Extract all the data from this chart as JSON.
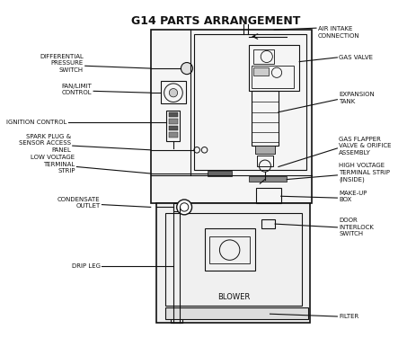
{
  "title": "G14 PARTS ARRANGEMENT",
  "labels": {
    "air_intake": "AIR INTAKE\nCONNECTION",
    "gas_valve": "GAS VALVE",
    "expansion_tank": "EXPANSION\nTANK",
    "gas_flapper": "GAS FLAPPER\nVALVE & ORIFICE\nASSEMBLY",
    "high_voltage": "HIGH VOLTAGE\nTERMINAL STRIP\n(INSIDE)",
    "makeup_box": "MAKE-UP\nBOX",
    "door_interlock": "DOOR\nINTERLOCK\nSWITCH",
    "filter": "FILTER",
    "blower": "BLOWER",
    "drip_leg": "DRIP LEG",
    "condensate": "CONDENSATE\nOUTLET",
    "low_voltage": "LOW VOLTAGE\nTERMINAL\nSTRIP",
    "spark_plug": "SPARK PLUG &\nSENSOR ACCESS\nPANEL",
    "ignition": "IGNITION CONTROL",
    "fan_limit": "FAN/LIMIT\nCONTROL",
    "diff_pressure": "DIFFERENTIAL\nPRESSURE\nSWITCH"
  }
}
